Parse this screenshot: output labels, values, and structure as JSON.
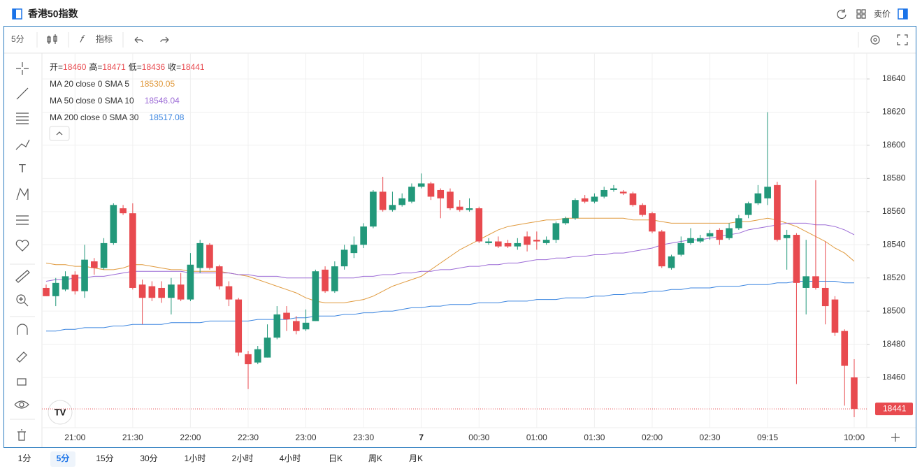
{
  "header": {
    "title": "香港50指数",
    "sell": "卖价"
  },
  "toolbar": {
    "interval": "5分",
    "indicators": "指标"
  },
  "timeframes": [
    "1分",
    "5分",
    "15分",
    "30分",
    "1小时",
    "2小时",
    "4小时",
    "日K",
    "周K",
    "月K"
  ],
  "active_timeframe": 1,
  "chart_data": {
    "type": "candlestick",
    "ohlc_labels": [
      "开=",
      "高=",
      "低=",
      "收="
    ],
    "categories": [
      null,
      null,
      null,
      "21:00",
      null,
      null,
      null,
      null,
      null,
      "21:30",
      null,
      null,
      null,
      null,
      null,
      "22:00",
      null,
      null,
      null,
      null,
      null,
      "22:30",
      null,
      null,
      null,
      null,
      null,
      "23:00",
      null,
      null,
      null,
      null,
      null,
      "23:30",
      null,
      null,
      null,
      null,
      null,
      "7",
      null,
      null,
      null,
      null,
      null,
      "00:30",
      null,
      null,
      null,
      null,
      null,
      "01:00",
      null,
      null,
      null,
      null,
      null,
      "01:30",
      null,
      null,
      null,
      null,
      null,
      "02:00",
      null,
      null,
      null,
      null,
      null,
      "02:30",
      null,
      null,
      null,
      null,
      null,
      "09:15",
      null,
      null,
      null,
      null,
      null,
      null,
      null,
      null,
      "10:00"
    ],
    "open": [
      18514,
      18509,
      18513,
      18522,
      18512,
      18530,
      18526,
      18541,
      18562,
      18559,
      18516,
      18515,
      18514,
      18508,
      18516,
      18507,
      18526,
      18540,
      18527,
      18515,
      18507,
      18474,
      18469,
      18472,
      18484,
      18499,
      18494,
      18489,
      18494,
      18525,
      18512,
      18527,
      18535,
      18540,
      18551,
      18572,
      18561,
      18564,
      18566,
      18575,
      18577,
      18573,
      18572,
      18563,
      18561,
      18562,
      18541,
      18542,
      18541,
      18539,
      18545,
      18543,
      18541,
      18543,
      18553,
      18556,
      18568,
      18566,
      18569,
      18573,
      18572,
      18571,
      18564,
      18559,
      18548,
      18526,
      18534,
      18541,
      18542,
      18545,
      18549,
      18544,
      18550,
      18558,
      18565,
      18568,
      18576,
      18544,
      18546,
      18514,
      18521,
      18514,
      18507,
      18488,
      18460
    ],
    "high": [
      18516,
      18520,
      18524,
      18524,
      18540,
      18532,
      18544,
      18565,
      18564,
      18565,
      18519,
      18518,
      18518,
      18520,
      18523,
      18535,
      18543,
      18541,
      18528,
      18518,
      18508,
      18476,
      18479,
      18492,
      18503,
      18503,
      18497,
      18501,
      18525,
      18527,
      18530,
      18540,
      18545,
      18553,
      18573,
      18581,
      18572,
      18571,
      18577,
      18583,
      18578,
      18574,
      18574,
      18567,
      18568,
      18563,
      18544,
      18545,
      18543,
      18544,
      18548,
      18548,
      18545,
      18554,
      18557,
      18568,
      18570,
      18571,
      18575,
      18576,
      18573,
      18572,
      18565,
      18560,
      18549,
      18534,
      18545,
      18550,
      18546,
      18549,
      18550,
      18553,
      18558,
      18566,
      18576,
      18620,
      18578,
      18549,
      18547,
      18543,
      18579,
      18542,
      18509,
      18489,
      18471
    ],
    "low": [
      18509,
      18503,
      18512,
      18510,
      18508,
      18522,
      18525,
      18540,
      18558,
      18513,
      18492,
      18506,
      18505,
      18498,
      18506,
      18506,
      18523,
      18525,
      18513,
      18503,
      18473,
      18453,
      18468,
      18472,
      18483,
      18488,
      18486,
      18488,
      18494,
      18511,
      18511,
      18525,
      18532,
      18538,
      18550,
      18560,
      18560,
      18563,
      18565,
      18574,
      18567,
      18556,
      18561,
      18560,
      18560,
      18541,
      18540,
      18538,
      18538,
      18537,
      18536,
      18537,
      18540,
      18541,
      18552,
      18555,
      18565,
      18565,
      18568,
      18572,
      18570,
      18563,
      18557,
      18547,
      18526,
      18525,
      18533,
      18540,
      18541,
      18543,
      18540,
      18543,
      18549,
      18556,
      18564,
      18564,
      18542,
      18525,
      18456,
      18498,
      18513,
      18492,
      18485,
      18443,
      18436
    ],
    "close": [
      18509,
      18517,
      18521,
      18512,
      18531,
      18526,
      18541,
      18564,
      18559,
      18514,
      18508,
      18508,
      18508,
      18516,
      18507,
      18528,
      18541,
      18526,
      18515,
      18507,
      18475,
      18468,
      18477,
      18484,
      18498,
      18495,
      18488,
      18493,
      18524,
      18512,
      18527,
      18537,
      18540,
      18551,
      18572,
      18561,
      18564,
      18568,
      18575,
      18577,
      18569,
      18568,
      18562,
      18561,
      18562,
      18542,
      18542,
      18539,
      18539,
      18541,
      18540,
      18542,
      18543,
      18553,
      18556,
      18567,
      18566,
      18569,
      18573,
      18574,
      18571,
      18564,
      18558,
      18548,
      18527,
      18533,
      18541,
      18544,
      18544,
      18547,
      18543,
      18550,
      18556,
      18565,
      18571,
      18575,
      18543,
      18546,
      18517,
      18521,
      18514,
      18503,
      18487,
      18467,
      18441
    ],
    "up_color": "#22987a",
    "down_color": "#e84a4f",
    "series": [
      {
        "name": "MA 20 close 0 SMA 5",
        "color": "#e09a3e",
        "values": [
          18529,
          18528,
          18528,
          18527,
          18527,
          18526,
          18525,
          18525,
          18526,
          18528,
          18528,
          18527,
          18526,
          18525,
          18525,
          18524,
          18524,
          18524,
          18524,
          18523,
          18522,
          18521,
          18519,
          18517,
          18515,
          18513,
          18511,
          18508,
          18506,
          18505,
          18505,
          18505,
          18506,
          18507,
          18509,
          18512,
          18515,
          18517,
          18519,
          18521,
          18525,
          18529,
          18533,
          18537,
          18540,
          18543,
          18546,
          18549,
          18551,
          18552,
          18553,
          18554,
          18555,
          18555,
          18556,
          18556,
          18556,
          18556,
          18556,
          18556,
          18556,
          18555,
          18555,
          18555,
          18554,
          18553,
          18553,
          18553,
          18553,
          18553,
          18553,
          18553,
          18554,
          18554,
          18555,
          18556,
          18555,
          18553,
          18551,
          18548,
          18545,
          18542,
          18538,
          18535,
          18530.05
        ]
      },
      {
        "name": "MA 50 close 0 SMA 10",
        "color": "#9c6bd6",
        "values": [
          18518,
          18519,
          18519,
          18520,
          18520,
          18521,
          18521,
          18522,
          18523,
          18524,
          18524,
          18524,
          18524,
          18524,
          18524,
          18523,
          18523,
          18523,
          18523,
          18523,
          18522,
          18522,
          18521,
          18521,
          18521,
          18520,
          18520,
          18520,
          18520,
          18520,
          18520,
          18520,
          18520,
          18521,
          18521,
          18522,
          18522,
          18523,
          18523,
          18524,
          18524,
          18525,
          18525,
          18526,
          18527,
          18527,
          18528,
          18528,
          18529,
          18529,
          18530,
          18531,
          18531,
          18532,
          18532,
          18533,
          18533,
          18534,
          18534,
          18535,
          18535,
          18536,
          18537,
          18538,
          18540,
          18541,
          18542,
          18543,
          18543,
          18544,
          18545,
          18546,
          18547,
          18549,
          18550,
          18551,
          18552,
          18553,
          18553,
          18553,
          18552,
          18552,
          18551,
          18549,
          18546.04
        ]
      },
      {
        "name": "MA 200 close 0 SMA 30",
        "color": "#3d86e0",
        "values": [
          18488,
          18488,
          18489,
          18489,
          18490,
          18490,
          18490,
          18491,
          18491,
          18492,
          18492,
          18492,
          18492,
          18493,
          18493,
          18493,
          18493,
          18494,
          18494,
          18494,
          18494,
          18494,
          18495,
          18495,
          18495,
          18495,
          18496,
          18496,
          18497,
          18497,
          18497,
          18498,
          18498,
          18499,
          18499,
          18500,
          18500,
          18501,
          18502,
          18502,
          18503,
          18503,
          18504,
          18504,
          18504,
          18505,
          18505,
          18505,
          18506,
          18506,
          18506,
          18507,
          18507,
          18507,
          18508,
          18508,
          18508,
          18509,
          18509,
          18510,
          18510,
          18511,
          18511,
          18512,
          18512,
          18513,
          18513,
          18514,
          18514,
          18514,
          18515,
          18515,
          18515,
          18516,
          18516,
          18516,
          18517,
          18517,
          18518,
          18518,
          18518,
          18518,
          18518,
          18517,
          18517.08
        ]
      }
    ],
    "ylim": [
      18429.7,
      18653.9
    ],
    "yticks": [
      18460,
      18480,
      18500,
      18520,
      18540,
      18560,
      18580,
      18600,
      18620,
      18640
    ],
    "grid": true
  }
}
